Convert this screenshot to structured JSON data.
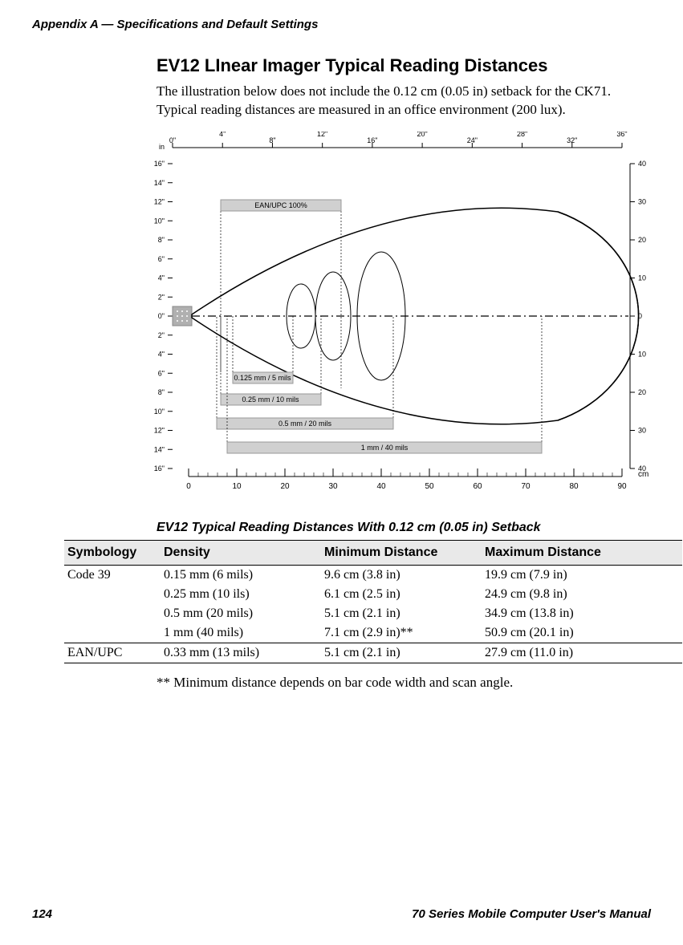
{
  "appendix_header": "Appendix A — Specifications and Default Settings",
  "title": "EV12 LInear Imager Typical Reading Distances",
  "intro": "The illustration below does not include the 0.12 cm (0.05 in) setback for the CK71. Typical reading distances are measured in an office environment (200 lux).",
  "diagram": {
    "top_axis_unit": "in",
    "top_ticks": [
      "0\"",
      "4\"",
      "8\"",
      "12\"",
      "16\"",
      "20\"",
      "24\"",
      "28\"",
      "32\"",
      "36\""
    ],
    "left_ticks": [
      "16\"",
      "14\"",
      "12\"",
      "10\"",
      "8\"",
      "6\"",
      "4\"",
      "2\"",
      "0\"",
      "2\"",
      "4\"",
      "6\"",
      "8\"",
      "10\"",
      "12\"",
      "14\"",
      "16\""
    ],
    "right_unit": "cm",
    "right_ticks": [
      "40",
      "30",
      "20",
      "10",
      "0",
      "10",
      "20",
      "30",
      "40"
    ],
    "bottom_ticks": [
      "0",
      "10",
      "20",
      "30",
      "40",
      "50",
      "60",
      "70",
      "80",
      "90"
    ],
    "bars": [
      {
        "label": "EAN/UPC 100%",
        "color": "#d0d0d0"
      },
      {
        "label": "0.125 mm / 5 mils",
        "color": "#d0d0d0"
      },
      {
        "label": "0.25 mm / 10 mils",
        "color": "#d0d0d0"
      },
      {
        "label": "0.5 mm / 20 mils",
        "color": "#d0d0d0"
      },
      {
        "label": "1 mm / 40 mils",
        "color": "#d0d0d0"
      }
    ]
  },
  "table_caption": "EV12 Typical Reading Distances With 0.12 cm (0.05 in) Setback",
  "columns": [
    "Symbology",
    "Density",
    "Minimum Distance",
    "Maximum Distance"
  ],
  "rows": [
    [
      "Code 39",
      "0.15 mm (6 mils)",
      "9.6 cm (3.8 in)",
      "19.9 cm (7.9 in)"
    ],
    [
      "",
      "0.25 mm (10 ils)",
      "6.1 cm (2.5 in)",
      "24.9 cm (9.8 in)"
    ],
    [
      "",
      "0.5 mm (20 mils)",
      "5.1 cm (2.1 in)",
      "34.9 cm (13.8 in)"
    ],
    [
      "",
      "1 mm (40 mils)",
      "7.1 cm (2.9 in)**",
      "50.9 cm (20.1 in)"
    ],
    [
      "EAN/UPC",
      "0.33 mm (13 mils)",
      "5.1 cm (2.1 in)",
      "27.9 cm (11.0 in)"
    ]
  ],
  "footnote": "** Minimum distance depends on bar code width and scan angle.",
  "page_number": "124",
  "manual_title": "70 Series Mobile Computer User's Manual"
}
